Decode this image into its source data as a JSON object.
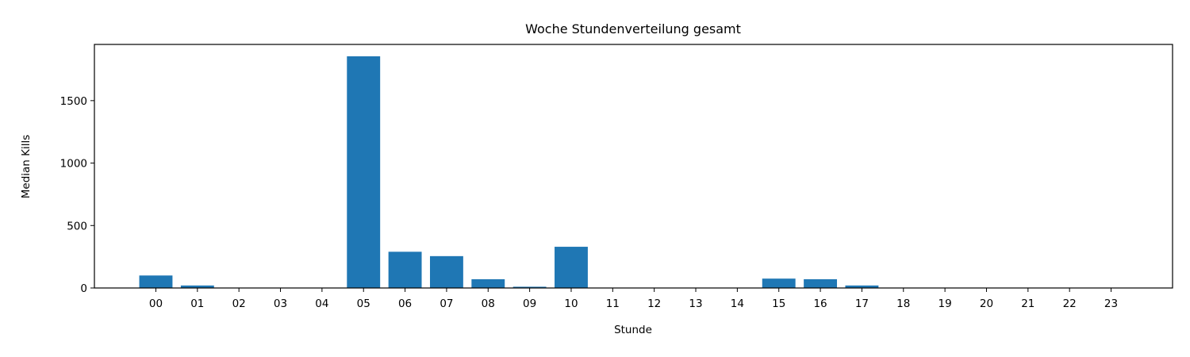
{
  "chart_data": {
    "type": "bar",
    "title": "Woche Stundenverteilung gesamt",
    "xlabel": "Stunde",
    "ylabel": "Median Kills",
    "categories": [
      "00",
      "01",
      "02",
      "03",
      "04",
      "05",
      "06",
      "07",
      "08",
      "09",
      "10",
      "11",
      "12",
      "13",
      "14",
      "15",
      "16",
      "17",
      "18",
      "19",
      "20",
      "21",
      "22",
      "23"
    ],
    "values": [
      100,
      20,
      0,
      0,
      0,
      1855,
      290,
      255,
      70,
      10,
      330,
      0,
      0,
      0,
      0,
      75,
      70,
      20,
      0,
      0,
      0,
      0,
      0,
      0
    ],
    "ylim": [
      0,
      1950
    ],
    "yticks": [
      0,
      500,
      1000,
      1500
    ],
    "bar_color": "#1f77b4",
    "grid": false,
    "legend": "none"
  }
}
